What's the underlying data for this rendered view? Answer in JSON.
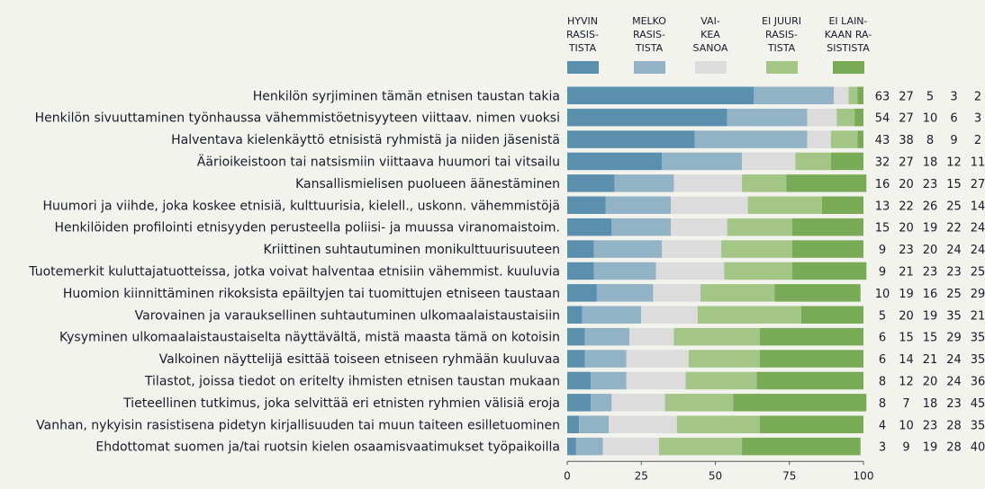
{
  "chart_data": {
    "type": "bar",
    "orientation": "horizontal",
    "stacked": true,
    "xlim": [
      0,
      100
    ],
    "xticks": [
      "0",
      "25",
      "50",
      "75",
      "100"
    ],
    "legend_position": "top",
    "series": [
      {
        "name": "HYVIN RASIS-TISTA",
        "lines": [
          "HYVIN",
          "RASIS-",
          "TISTA"
        ],
        "color": "#5a8fad",
        "values": [
          63,
          54,
          43,
          32,
          16,
          13,
          15,
          9,
          9,
          10,
          5,
          6,
          6,
          8,
          8,
          4,
          3
        ]
      },
      {
        "name": "MELKO RASIS-TISTA",
        "lines": [
          "MELKO",
          "RASIS-",
          "TISTA"
        ],
        "color": "#92b2c5",
        "values": [
          27,
          27,
          38,
          27,
          20,
          22,
          20,
          23,
          21,
          19,
          20,
          15,
          14,
          12,
          7,
          10,
          9
        ]
      },
      {
        "name": "VAI-KEA SANOA",
        "lines": [
          "VAI-",
          "KEA",
          "SANOA"
        ],
        "color": "#dcdcdc",
        "values": [
          5,
          10,
          8,
          18,
          23,
          26,
          19,
          20,
          23,
          16,
          19,
          15,
          21,
          20,
          18,
          23,
          19
        ]
      },
      {
        "name": "EI JUURI RASIS-TISTA",
        "lines": [
          "EI JUURI",
          "RASIS-",
          "TISTA"
        ],
        "color": "#a3c585",
        "values": [
          3,
          6,
          9,
          12,
          15,
          25,
          22,
          24,
          23,
          25,
          35,
          29,
          24,
          24,
          23,
          28,
          28
        ]
      },
      {
        "name": "EI LAIN-KAAN RA-SISTISTA",
        "lines": [
          "EI LAIN-",
          "KAAN RA-",
          "SISTISTA"
        ],
        "color": "#79ab57",
        "values": [
          2,
          3,
          2,
          11,
          27,
          14,
          24,
          24,
          25,
          29,
          21,
          35,
          35,
          36,
          45,
          35,
          40
        ]
      }
    ],
    "categories": [
      "Henkilön syrjiminen tämän etnisen taustan takia",
      "Henkilön sivuuttaminen työnhaussa vähemmistöetnisyyteen viittaav. nimen vuoksi",
      "Halventava kielenkäyttö etnisistä ryhmistä ja niiden jäsenistä",
      "Äärioikeistoon tai natsismiin viittaava huumori tai vitsailu",
      "Kansallismielisen puolueen äänestäminen",
      "Huumori ja viihde, joka koskee etnisiä, kulttuurisia, kielell., uskonn. vähemmistöjä",
      "Henkilöiden profilointi etnisyyden perusteella poliisi- ja muussa viranomaistoim.",
      "Kriittinen suhtautuminen monikulttuurisuuteen",
      "Tuotemerkit kuluttajatuotteissa, jotka voivat halventaa etnisiin vähemmist. kuuluvia",
      "Huomion kiinnittäminen rikoksista epäiltyjen tai tuomittujen etniseen taustaan",
      "Varovainen ja varauksellinen suhtautuminen ulkomaalaistaustaisiin",
      "Kysyminen ulkomaalaistaustaiselta näyttävältä, mistä maasta tämä on kotoisin",
      "Valkoinen näyttelijä esittää toiseen etniseen ryhmään kuuluvaa",
      "Tilastot, joissa tiedot on eritelty ihmisten etnisen taustan mukaan",
      "Tieteellinen tutkimus, joka selvittää eri etnisten ryhmien välisiä eroja",
      "Vanhan, nykyisin rasistisena pidetyn kirjallisuuden tai muun taiteen esilletuominen",
      "Ehdottomat suomen ja/tai ruotsin kielen osaamisvaatimukset työpaikoilla"
    ]
  }
}
